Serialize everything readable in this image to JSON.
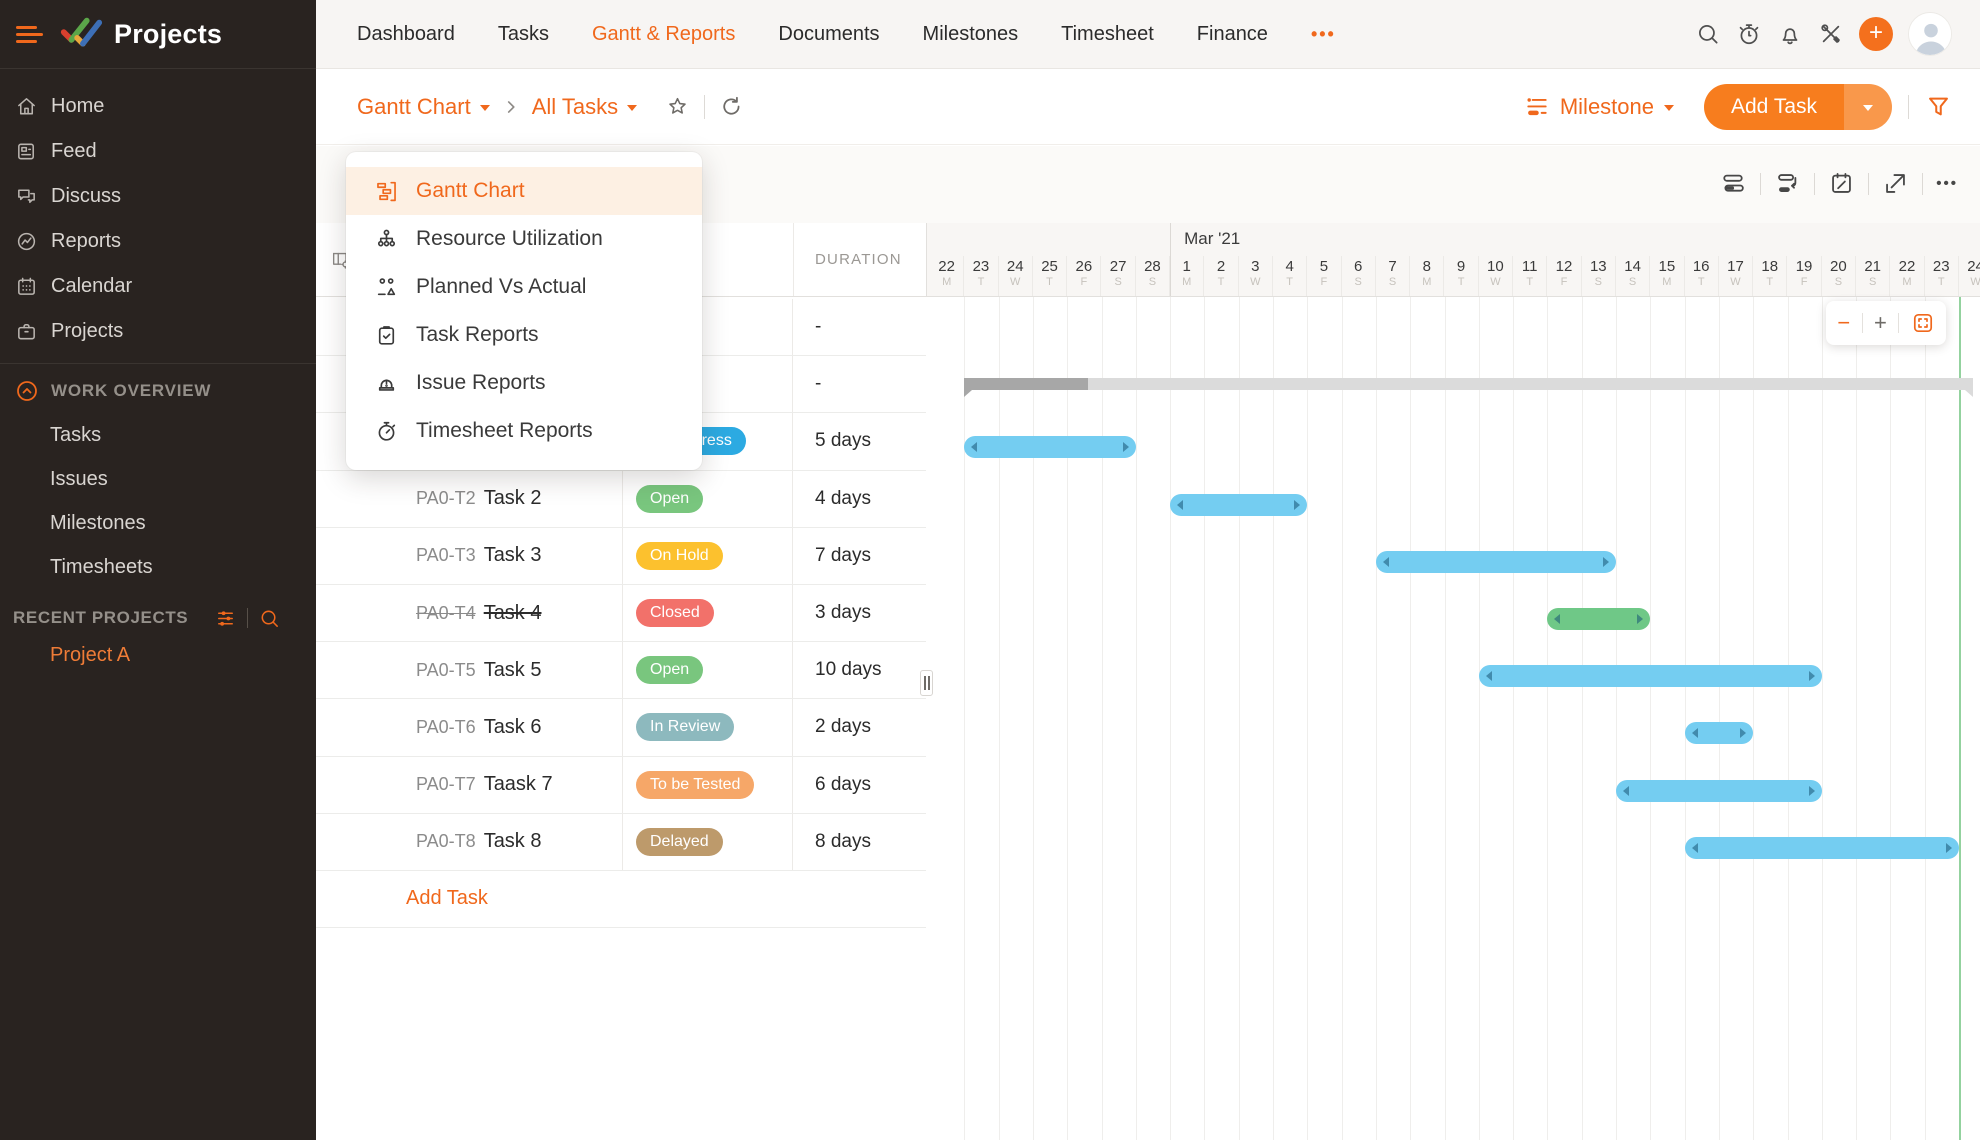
{
  "brand": {
    "title": "Projects"
  },
  "topnav": {
    "items": [
      {
        "label": "Dashboard",
        "active": false
      },
      {
        "label": "Tasks",
        "active": false
      },
      {
        "label": "Gantt & Reports",
        "active": true
      },
      {
        "label": "Documents",
        "active": false
      },
      {
        "label": "Milestones",
        "active": false
      },
      {
        "label": "Timesheet",
        "active": false
      },
      {
        "label": "Finance",
        "active": false
      }
    ],
    "more_label": "•••"
  },
  "sidebar": {
    "nav": [
      {
        "label": "Home",
        "icon": "home-icon"
      },
      {
        "label": "Feed",
        "icon": "feed-icon"
      },
      {
        "label": "Discuss",
        "icon": "discuss-icon"
      },
      {
        "label": "Reports",
        "icon": "reports-icon"
      },
      {
        "label": "Calendar",
        "icon": "calendar-icon"
      },
      {
        "label": "Projects",
        "icon": "projects-icon"
      }
    ],
    "work_overview": {
      "label": "WORK OVERVIEW",
      "items": [
        "Tasks",
        "Issues",
        "Milestones",
        "Timesheets"
      ]
    },
    "recent_projects": {
      "label": "RECENT PROJECTS",
      "items": [
        "Project A"
      ]
    }
  },
  "breadcrumb": {
    "view": "Gantt Chart",
    "scope": "All Tasks"
  },
  "actions": {
    "group_by_label": "Milestone",
    "add_task_label": "Add Task"
  },
  "view_dropdown": {
    "items": [
      {
        "label": "Gantt Chart",
        "icon": "gantt-icon",
        "active": true
      },
      {
        "label": "Resource Utilization",
        "icon": "resource-utilization-icon",
        "active": false
      },
      {
        "label": "Planned Vs Actual",
        "icon": "planned-vs-actual-icon",
        "active": false
      },
      {
        "label": "Task Reports",
        "icon": "task-reports-icon",
        "active": false
      },
      {
        "label": "Issue Reports",
        "icon": "issue-reports-icon",
        "active": false
      },
      {
        "label": "Timesheet Reports",
        "icon": "timesheet-reports-icon",
        "active": false
      }
    ]
  },
  "table": {
    "duration_header": "DURATION",
    "add_task_label": "Add Task",
    "rows": [
      {
        "id": "",
        "name": "",
        "status": null,
        "duration": "-",
        "done": false
      },
      {
        "id": "",
        "name": "",
        "status": null,
        "duration": "-",
        "done": false
      },
      {
        "id": "",
        "name": "",
        "status": {
          "label": "In Progress",
          "color": "#2caae2"
        },
        "duration": "5 days",
        "done": false
      },
      {
        "id": "PA0-T2",
        "name": "Task 2",
        "status": {
          "label": "Open",
          "color": "#79c67e"
        },
        "duration": "4 days",
        "done": false
      },
      {
        "id": "PA0-T3",
        "name": "Task 3",
        "status": {
          "label": "On Hold",
          "color": "#fcc12e"
        },
        "duration": "7 days",
        "done": false
      },
      {
        "id": "PA0-T4",
        "name": "Task 4",
        "status": {
          "label": "Closed",
          "color": "#f2716a"
        },
        "duration": "3 days",
        "done": true
      },
      {
        "id": "PA0-T5",
        "name": "Task 5",
        "status": {
          "label": "Open",
          "color": "#79c67e"
        },
        "duration": "10 days",
        "done": false
      },
      {
        "id": "PA0-T6",
        "name": "Task 6",
        "status": {
          "label": "In Review",
          "color": "#8db9be"
        },
        "duration": "2 days",
        "done": false
      },
      {
        "id": "PA0-T7",
        "name": "Taask 7",
        "status": {
          "label": "To be Tested",
          "color": "#f6a768"
        },
        "duration": "6 days",
        "done": false
      },
      {
        "id": "PA0-T8",
        "name": "Task 8",
        "status": {
          "label": "Delayed",
          "color": "#bd9a6b"
        },
        "duration": "8 days",
        "done": false
      }
    ]
  },
  "gantt": {
    "month_label": "Mar '21",
    "month_start_index": 7,
    "days": [
      {
        "num": "22",
        "dow": "M"
      },
      {
        "num": "23",
        "dow": "T"
      },
      {
        "num": "24",
        "dow": "W"
      },
      {
        "num": "25",
        "dow": "T"
      },
      {
        "num": "26",
        "dow": "F"
      },
      {
        "num": "27",
        "dow": "S"
      },
      {
        "num": "28",
        "dow": "S"
      },
      {
        "num": "1",
        "dow": "M"
      },
      {
        "num": "2",
        "dow": "T"
      },
      {
        "num": "3",
        "dow": "W"
      },
      {
        "num": "4",
        "dow": "T"
      },
      {
        "num": "5",
        "dow": "F"
      },
      {
        "num": "6",
        "dow": "S"
      },
      {
        "num": "7",
        "dow": "S"
      },
      {
        "num": "8",
        "dow": "M"
      },
      {
        "num": "9",
        "dow": "T"
      },
      {
        "num": "10",
        "dow": "W"
      },
      {
        "num": "11",
        "dow": "T"
      },
      {
        "num": "12",
        "dow": "F"
      },
      {
        "num": "13",
        "dow": "S"
      },
      {
        "num": "14",
        "dow": "S"
      },
      {
        "num": "15",
        "dow": "M"
      },
      {
        "num": "16",
        "dow": "T"
      },
      {
        "num": "17",
        "dow": "W"
      },
      {
        "num": "18",
        "dow": "T"
      },
      {
        "num": "19",
        "dow": "F"
      },
      {
        "num": "20",
        "dow": "S"
      },
      {
        "num": "21",
        "dow": "S"
      },
      {
        "num": "22",
        "dow": "M"
      },
      {
        "num": "23",
        "dow": "T"
      },
      {
        "num": "24",
        "dow": "W"
      }
    ],
    "bars": [
      {
        "row": 1,
        "type": "parent",
        "start": 1,
        "span": 29.4,
        "progress": 0.123
      },
      {
        "row": 2,
        "type": "task",
        "start": 1,
        "span": 5,
        "color": "#74cdf1"
      },
      {
        "row": 3,
        "type": "task",
        "start": 7,
        "span": 4,
        "color": "#74cdf1"
      },
      {
        "row": 4,
        "type": "task",
        "start": 13,
        "span": 7,
        "color": "#74cdf1"
      },
      {
        "row": 5,
        "type": "task",
        "start": 18,
        "span": 3,
        "color": "#6fc887"
      },
      {
        "row": 6,
        "type": "task",
        "start": 16,
        "span": 10,
        "color": "#74cdf1"
      },
      {
        "row": 7,
        "type": "task",
        "start": 22,
        "span": 2,
        "color": "#74cdf1"
      },
      {
        "row": 8,
        "type": "task",
        "start": 20,
        "span": 6,
        "color": "#74cdf1"
      },
      {
        "row": 9,
        "type": "task",
        "start": 22,
        "span": 8,
        "color": "#74cdf1"
      }
    ],
    "today_index": 30,
    "zoom": {
      "out": "−",
      "in": "+"
    },
    "today_color": "#93d29e"
  },
  "colors": {
    "accent": "#f0681c",
    "bar_blue": "#74cdf1",
    "bar_green": "#6fc887"
  }
}
